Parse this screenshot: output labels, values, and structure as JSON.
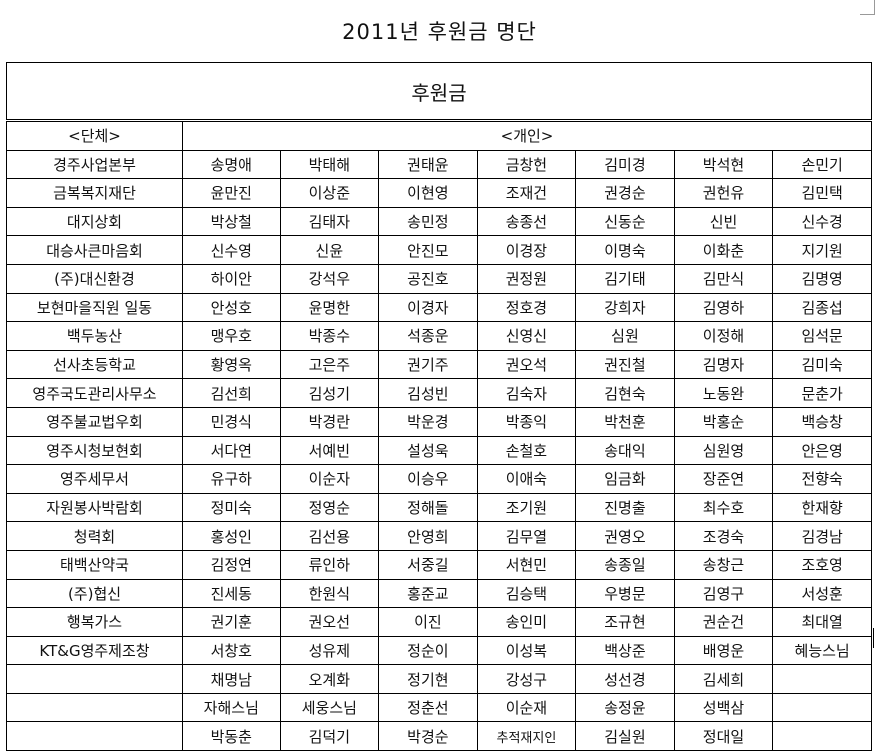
{
  "title": "2011년 후원금 명단",
  "table": {
    "caption": "후원금",
    "org_header": "<단체>",
    "person_header": "<개인>",
    "rows": [
      {
        "org": "경주사업본부",
        "people": [
          "송명애",
          "박태해",
          "권태윤",
          "금창헌",
          "김미경",
          "박석현",
          "손민기"
        ]
      },
      {
        "org": "금복복지재단",
        "people": [
          "윤만진",
          "이상준",
          "이현영",
          "조재건",
          "권경순",
          "권헌유",
          "김민택"
        ]
      },
      {
        "org": "대지상회",
        "people": [
          "박상철",
          "김태자",
          "송민정",
          "송종선",
          "신동순",
          "신빈",
          "신수경"
        ]
      },
      {
        "org": "대승사큰마음회",
        "people": [
          "신수영",
          "신윤",
          "안진모",
          "이경장",
          "이명숙",
          "이화춘",
          "지기원"
        ]
      },
      {
        "org": "(주)대신환경",
        "people": [
          "하이안",
          "강석우",
          "공진호",
          "권정원",
          "김기태",
          "김만식",
          "김명영"
        ]
      },
      {
        "org": "보현마을직원 일동",
        "people": [
          "안성호",
          "윤명한",
          "이경자",
          "정호경",
          "강희자",
          "김영하",
          "김종섭"
        ]
      },
      {
        "org": "백두농산",
        "people": [
          "맹우호",
          "박종수",
          "석종운",
          "신영신",
          "심원",
          "이정해",
          "임석문"
        ]
      },
      {
        "org": "선사초등학교",
        "people": [
          "황영옥",
          "고은주",
          "권기주",
          "권오석",
          "권진철",
          "김명자",
          "김미숙"
        ]
      },
      {
        "org": "영주국도관리사무소",
        "people": [
          "김선희",
          "김성기",
          "김성빈",
          "김숙자",
          "김현숙",
          "노동완",
          "문춘가"
        ]
      },
      {
        "org": "영주불교법우회",
        "people": [
          "민경식",
          "박경란",
          "박운경",
          "박종익",
          "박천훈",
          "박홍순",
          "백승창"
        ]
      },
      {
        "org": "영주시청보현회",
        "people": [
          "서다연",
          "서예빈",
          "설성욱",
          "손철호",
          "송대익",
          "심원영",
          "안은영"
        ]
      },
      {
        "org": "영주세무서",
        "people": [
          "유구하",
          "이순자",
          "이승우",
          "이애숙",
          "임금화",
          "장준연",
          "전향숙"
        ]
      },
      {
        "org": "자원봉사박람회",
        "people": [
          "정미숙",
          "정영순",
          "정해돌",
          "조기원",
          "진명출",
          "최수호",
          "한재향"
        ]
      },
      {
        "org": "청력회",
        "people": [
          "홍성인",
          "김선용",
          "안영희",
          "김무열",
          "권영오",
          "조경숙",
          "김경남"
        ]
      },
      {
        "org": "태백산약국",
        "people": [
          "김정연",
          "류인하",
          "서중길",
          "서현민",
          "송종일",
          "송창근",
          "조호영"
        ]
      },
      {
        "org": "(주)협신",
        "people": [
          "진세동",
          "한원식",
          "홍준교",
          "김승택",
          "우병문",
          "김영구",
          "서성훈"
        ]
      },
      {
        "org": "행복가스",
        "people": [
          "권기훈",
          "권오선",
          "이진",
          "송인미",
          "조규현",
          "권순건",
          "최대열"
        ]
      },
      {
        "org": "KT&G영주제조창",
        "people": [
          "서창호",
          "성유제",
          "정순이",
          "이성복",
          "백상준",
          "배영운",
          "혜능스님"
        ]
      },
      {
        "org": "",
        "people": [
          "채명남",
          "오계화",
          "정기현",
          "강성구",
          "성선경",
          "김세희",
          ""
        ]
      },
      {
        "org": "",
        "people": [
          "자해스님",
          "세웅스님",
          "정춘선",
          "이순재",
          "송정윤",
          "성백삼",
          ""
        ]
      },
      {
        "org": "",
        "people": [
          "박동춘",
          "김덕기",
          "박경순",
          "추적재지인",
          "김실원",
          "정대일",
          ""
        ]
      }
    ]
  }
}
